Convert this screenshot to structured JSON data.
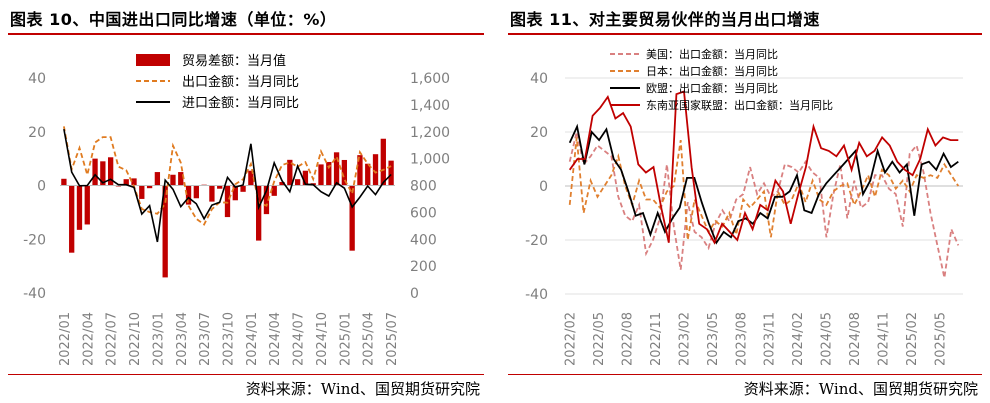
{
  "colors": {
    "accent": "#c00000",
    "bar": "#c00000",
    "export_dashed": "#e07b20",
    "black": "#000000",
    "us": "#d98080",
    "japan": "#e08030",
    "eu": "#000000",
    "asean": "#c00000",
    "grid": "#e0e0e0",
    "axis_text": "#7f7f7f"
  },
  "left": {
    "title": "图表 10、中国进出口同比增速（单位：%）",
    "source": "资料来源：Wind、国贸期货研究院"
  },
  "right": {
    "title": "图表 11、对主要贸易伙伴的当月出口增速",
    "source": "资料来源：Wind、国贸期货研究院"
  },
  "chart_data": [
    {
      "type": "bar",
      "title": "图表 10、中国进出口同比增速（单位：%）",
      "categories": [
        "2022/01",
        "2022/02",
        "2022/03",
        "2022/04",
        "2022/05",
        "2022/06",
        "2022/07",
        "2022/08",
        "2022/09",
        "2022/10",
        "2022/11",
        "2022/12",
        "2023/01",
        "2023/02",
        "2023/03",
        "2023/04",
        "2023/05",
        "2023/06",
        "2023/07",
        "2023/08",
        "2023/09",
        "2023/10",
        "2023/11",
        "2023/12",
        "2024/01",
        "2024/02",
        "2024/03",
        "2024/04",
        "2024/05",
        "2024/06",
        "2024/07",
        "2024/08",
        "2024/09",
        "2024/10",
        "2024/11",
        "2024/12",
        "2025/01",
        "2025/02",
        "2025/03",
        "2025/04",
        "2025/05",
        "2025/06",
        "2025/07"
      ],
      "x_tick_labels": [
        "2022/01",
        "2022/04",
        "2022/07",
        "2022/10",
        "2023/01",
        "2023/04",
        "2023/07",
        "2023/10",
        "2024/01",
        "2024/04",
        "2024/07",
        "2024/10",
        "2025/01",
        "2025/04",
        "2025/07"
      ],
      "ylim_left": [
        -40,
        40
      ],
      "yticks_left": [
        "40",
        "20",
        "0",
        "-20",
        "-40"
      ],
      "ylim_right": [
        0,
        1600
      ],
      "yticks_right": [
        "1,600",
        "1,400",
        "1,200",
        "1,000",
        "800",
        "600",
        "400",
        "200",
        "0"
      ],
      "grid": false,
      "legend_position": "top-center",
      "series": [
        {
          "name": "贸易差额：当月值",
          "kind": "bar",
          "axis": "right",
          "values": [
            850,
            300,
            470,
            510,
            1000,
            980,
            1010,
            793,
            847,
            853,
            700,
            780,
            900,
            116,
            880,
            900,
            658,
            705,
            806,
            680,
            776,
            565,
            690,
            753,
            910,
            390,
            587,
            723,
            826,
            991,
            847,
            910,
            817,
            957,
            975,
            1047,
            990,
            315,
            1026,
            962,
            1033,
            1148,
            985
          ]
        },
        {
          "name": "出口金额：当月同比",
          "kind": "line",
          "style": "dashed",
          "axis": "left",
          "values": [
            22,
            6,
            14,
            4,
            16,
            18,
            18,
            7,
            5.7,
            -0.3,
            -8.7,
            -9.9,
            -10.5,
            -6.8,
            14.8,
            8.5,
            -7.5,
            -12.4,
            -14.5,
            -8.8,
            -6.2,
            -6.4,
            0.5,
            2.3,
            8,
            -6.5,
            -7.5,
            1.5,
            7.6,
            8.6,
            7,
            8.7,
            2.4,
            12.7,
            6.7,
            10.7,
            2.3,
            -3,
            12.4,
            8.1,
            4.8,
            5.8,
            7.2
          ]
        },
        {
          "name": "进口金额：当月同比",
          "kind": "line",
          "style": "solid",
          "axis": "left",
          "values": [
            21,
            5,
            -0.1,
            0,
            4,
            1,
            2.3,
            0.3,
            0.3,
            -0.7,
            -10.6,
            -7.5,
            -21,
            2,
            -1.4,
            -7.9,
            -4.5,
            -6.8,
            -12.4,
            -7.3,
            -6.2,
            3,
            -0.6,
            0.2,
            15.5,
            -8.2,
            -1.9,
            8.4,
            1.8,
            -2.3,
            7.2,
            0.5,
            0.3,
            -2.3,
            -3.9,
            1,
            -1,
            -8,
            -4.3,
            -0.2,
            -3.4,
            1.1,
            4.1
          ]
        }
      ]
    },
    {
      "type": "line",
      "title": "图表 11、对主要贸易伙伴的当月出口增速",
      "x_tick_labels": [
        "2022/02",
        "2022/05",
        "2022/08",
        "2022/11",
        "2023/02",
        "2023/05",
        "2023/08",
        "2023/11",
        "2024/02",
        "2024/05",
        "2024/08",
        "2024/11",
        "2025/02",
        "2025/05"
      ],
      "ylim": [
        -40,
        40
      ],
      "yticks": [
        "40",
        "20",
        "0",
        "-20",
        "-40"
      ],
      "grid": true,
      "legend_position": "top-left",
      "series": [
        {
          "name": "美国：出口金额：当月同比",
          "style": "dashed",
          "values": [
            9,
            20,
            8,
            11,
            15,
            13,
            11,
            -4,
            -11,
            -13,
            -7,
            -25,
            -20,
            -12,
            8,
            -15,
            -31,
            -6,
            -17,
            -19,
            -23,
            -14,
            -9,
            -13,
            -5,
            -3,
            7,
            -3,
            1,
            -4,
            -2,
            8,
            7,
            5,
            9,
            5,
            3,
            -19,
            -3,
            8,
            -12,
            2,
            -8,
            -6,
            4,
            4,
            -1,
            -3,
            -15,
            12,
            15,
            5,
            -10,
            -22,
            -34,
            -16,
            -22
          ]
        },
        {
          "name": "日本：出口金额：当月同比",
          "style": "dashed",
          "values": [
            -7,
            18,
            -10,
            2,
            -4,
            0,
            4,
            11,
            0,
            -7,
            2,
            -5,
            -5,
            -8,
            -2,
            0,
            17,
            -20,
            -5,
            -11,
            -17,
            -13,
            -15,
            -10,
            -18,
            -5,
            -8,
            -5,
            -2,
            -19,
            -2,
            -7,
            -5,
            1,
            -6,
            2,
            -5,
            -7,
            -2,
            0,
            1,
            -7,
            -2,
            4,
            -4,
            6,
            4,
            -1,
            2,
            -2,
            4,
            3,
            4,
            3,
            8,
            4,
            0
          ]
        },
        {
          "name": "欧盟：出口金额：当月同比",
          "style": "solid",
          "values": [
            16,
            22,
            8,
            20,
            17,
            21,
            10,
            6,
            -2,
            -11,
            -10,
            -18,
            -10,
            -17,
            -12,
            -8,
            3,
            3,
            -6,
            -14,
            -21,
            -17,
            -19,
            -13,
            -12,
            -14,
            -10,
            -12,
            -4,
            -4,
            -2,
            4,
            -9,
            -10,
            -3,
            1,
            4,
            7,
            10,
            13,
            -3,
            2,
            13,
            5,
            9,
            5,
            8,
            -11,
            8,
            9,
            6,
            12,
            7,
            9
          ]
        },
        {
          "name": "东南亚国家联盟：出口金额：当月同比",
          "style": "solid",
          "values": [
            6,
            10,
            10,
            26,
            29,
            33,
            25,
            27,
            22,
            8,
            5,
            7,
            -8,
            -21,
            34,
            35,
            7,
            -14,
            -16,
            -21,
            -14,
            -17,
            -20,
            -10,
            -16,
            -7,
            -9,
            2,
            -2,
            -14,
            -3,
            7,
            22,
            14,
            13,
            11,
            15,
            6,
            16,
            11,
            13,
            18,
            15,
            9,
            6,
            4,
            10,
            21,
            15,
            18,
            17,
            17
          ]
        }
      ]
    }
  ]
}
